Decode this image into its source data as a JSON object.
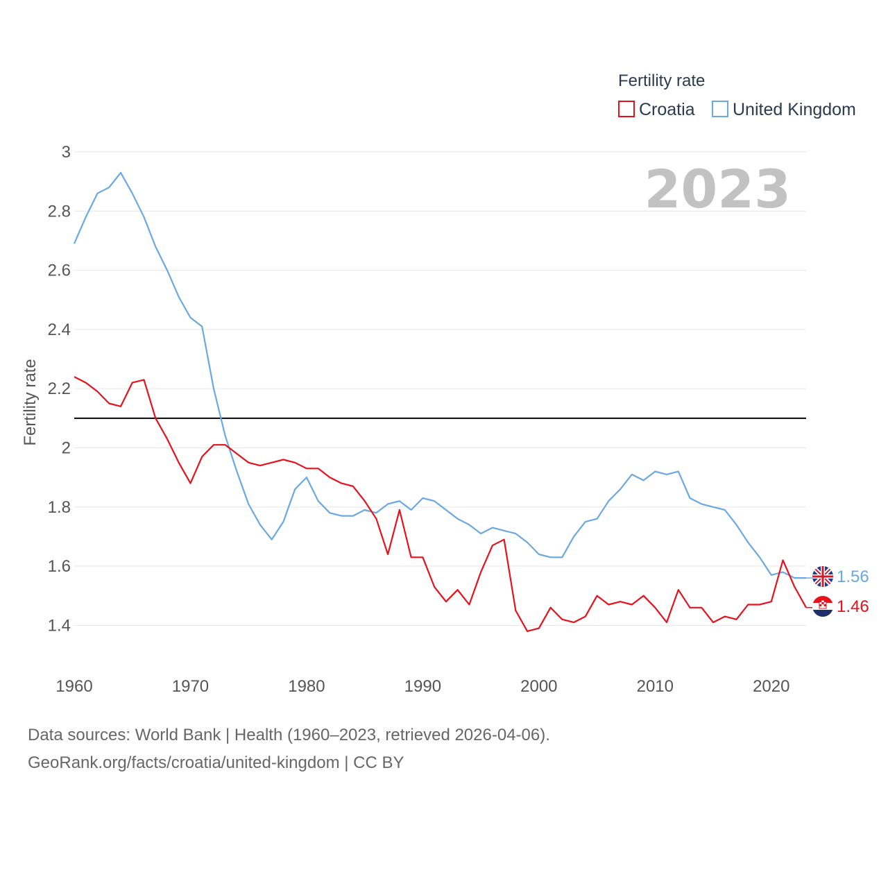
{
  "chart_data": {
    "type": "line",
    "legend_title": "Fertility rate",
    "year_label": "2023",
    "ylabel": "Fertility rate",
    "xlabel": "",
    "xlim": [
      1960,
      2023
    ],
    "ylim": [
      1.3,
      3.0
    ],
    "y_ticks": [
      1.4,
      1.6,
      1.8,
      2,
      2.2,
      2.4,
      2.6,
      2.8,
      3
    ],
    "y_tick_labels": [
      "1.4",
      "1.6",
      "1.8",
      "2",
      "2.2",
      "2.4",
      "2.6",
      "2.8",
      "3"
    ],
    "x_ticks": [
      1960,
      1970,
      1980,
      1990,
      2000,
      2010,
      2020
    ],
    "x_tick_labels": [
      "1960",
      "1970",
      "1980",
      "1990",
      "2000",
      "2010",
      "2020"
    ],
    "reference_line": {
      "y": 2.1,
      "color": "#000000"
    },
    "legend_position": "top-right",
    "grid": true,
    "x": [
      1960,
      1961,
      1962,
      1963,
      1964,
      1965,
      1966,
      1967,
      1968,
      1969,
      1970,
      1971,
      1972,
      1973,
      1974,
      1975,
      1976,
      1977,
      1978,
      1979,
      1980,
      1981,
      1982,
      1983,
      1984,
      1985,
      1986,
      1987,
      1988,
      1989,
      1990,
      1991,
      1992,
      1993,
      1994,
      1995,
      1996,
      1997,
      1998,
      1999,
      2000,
      2001,
      2002,
      2003,
      2004,
      2005,
      2006,
      2007,
      2008,
      2009,
      2010,
      2011,
      2012,
      2013,
      2014,
      2015,
      2016,
      2017,
      2018,
      2019,
      2020,
      2021,
      2022,
      2023
    ],
    "series": [
      {
        "name": "Croatia",
        "color": "#e8111b",
        "end_label": "1.46",
        "values": [
          2.24,
          2.22,
          2.19,
          2.15,
          2.14,
          2.22,
          2.23,
          2.1,
          2.03,
          1.95,
          1.88,
          1.97,
          2.01,
          2.01,
          1.98,
          1.95,
          1.94,
          1.95,
          1.96,
          1.95,
          1.93,
          1.93,
          1.9,
          1.88,
          1.87,
          1.82,
          1.76,
          1.64,
          1.79,
          1.63,
          1.63,
          1.53,
          1.48,
          1.52,
          1.47,
          1.58,
          1.67,
          1.69,
          1.45,
          1.38,
          1.39,
          1.46,
          1.42,
          1.41,
          1.43,
          1.5,
          1.47,
          1.48,
          1.47,
          1.5,
          1.46,
          1.41,
          1.52,
          1.46,
          1.46,
          1.41,
          1.43,
          1.42,
          1.47,
          1.47,
          1.48,
          1.62,
          1.53,
          1.46
        ]
      },
      {
        "name": "United Kingdom",
        "color": "#6aa8e3",
        "end_label": "1.56",
        "values": [
          2.69,
          2.78,
          2.86,
          2.88,
          2.93,
          2.86,
          2.78,
          2.68,
          2.6,
          2.51,
          2.44,
          2.41,
          2.2,
          2.04,
          1.92,
          1.81,
          1.74,
          1.69,
          1.75,
          1.86,
          1.9,
          1.82,
          1.78,
          1.77,
          1.77,
          1.79,
          1.78,
          1.81,
          1.82,
          1.79,
          1.83,
          1.82,
          1.79,
          1.76,
          1.74,
          1.71,
          1.73,
          1.72,
          1.71,
          1.68,
          1.64,
          1.63,
          1.63,
          1.7,
          1.75,
          1.76,
          1.82,
          1.86,
          1.91,
          1.89,
          1.92,
          1.91,
          1.92,
          1.83,
          1.81,
          1.8,
          1.79,
          1.74,
          1.68,
          1.63,
          1.57,
          1.58,
          1.56,
          1.56
        ]
      }
    ]
  },
  "footer": {
    "line1": "Data sources: World Bank | Health (1960–2023, retrieved 2026-04-06).",
    "line2": "GeoRank.org/facts/croatia/united-kingdom | CC BY"
  }
}
